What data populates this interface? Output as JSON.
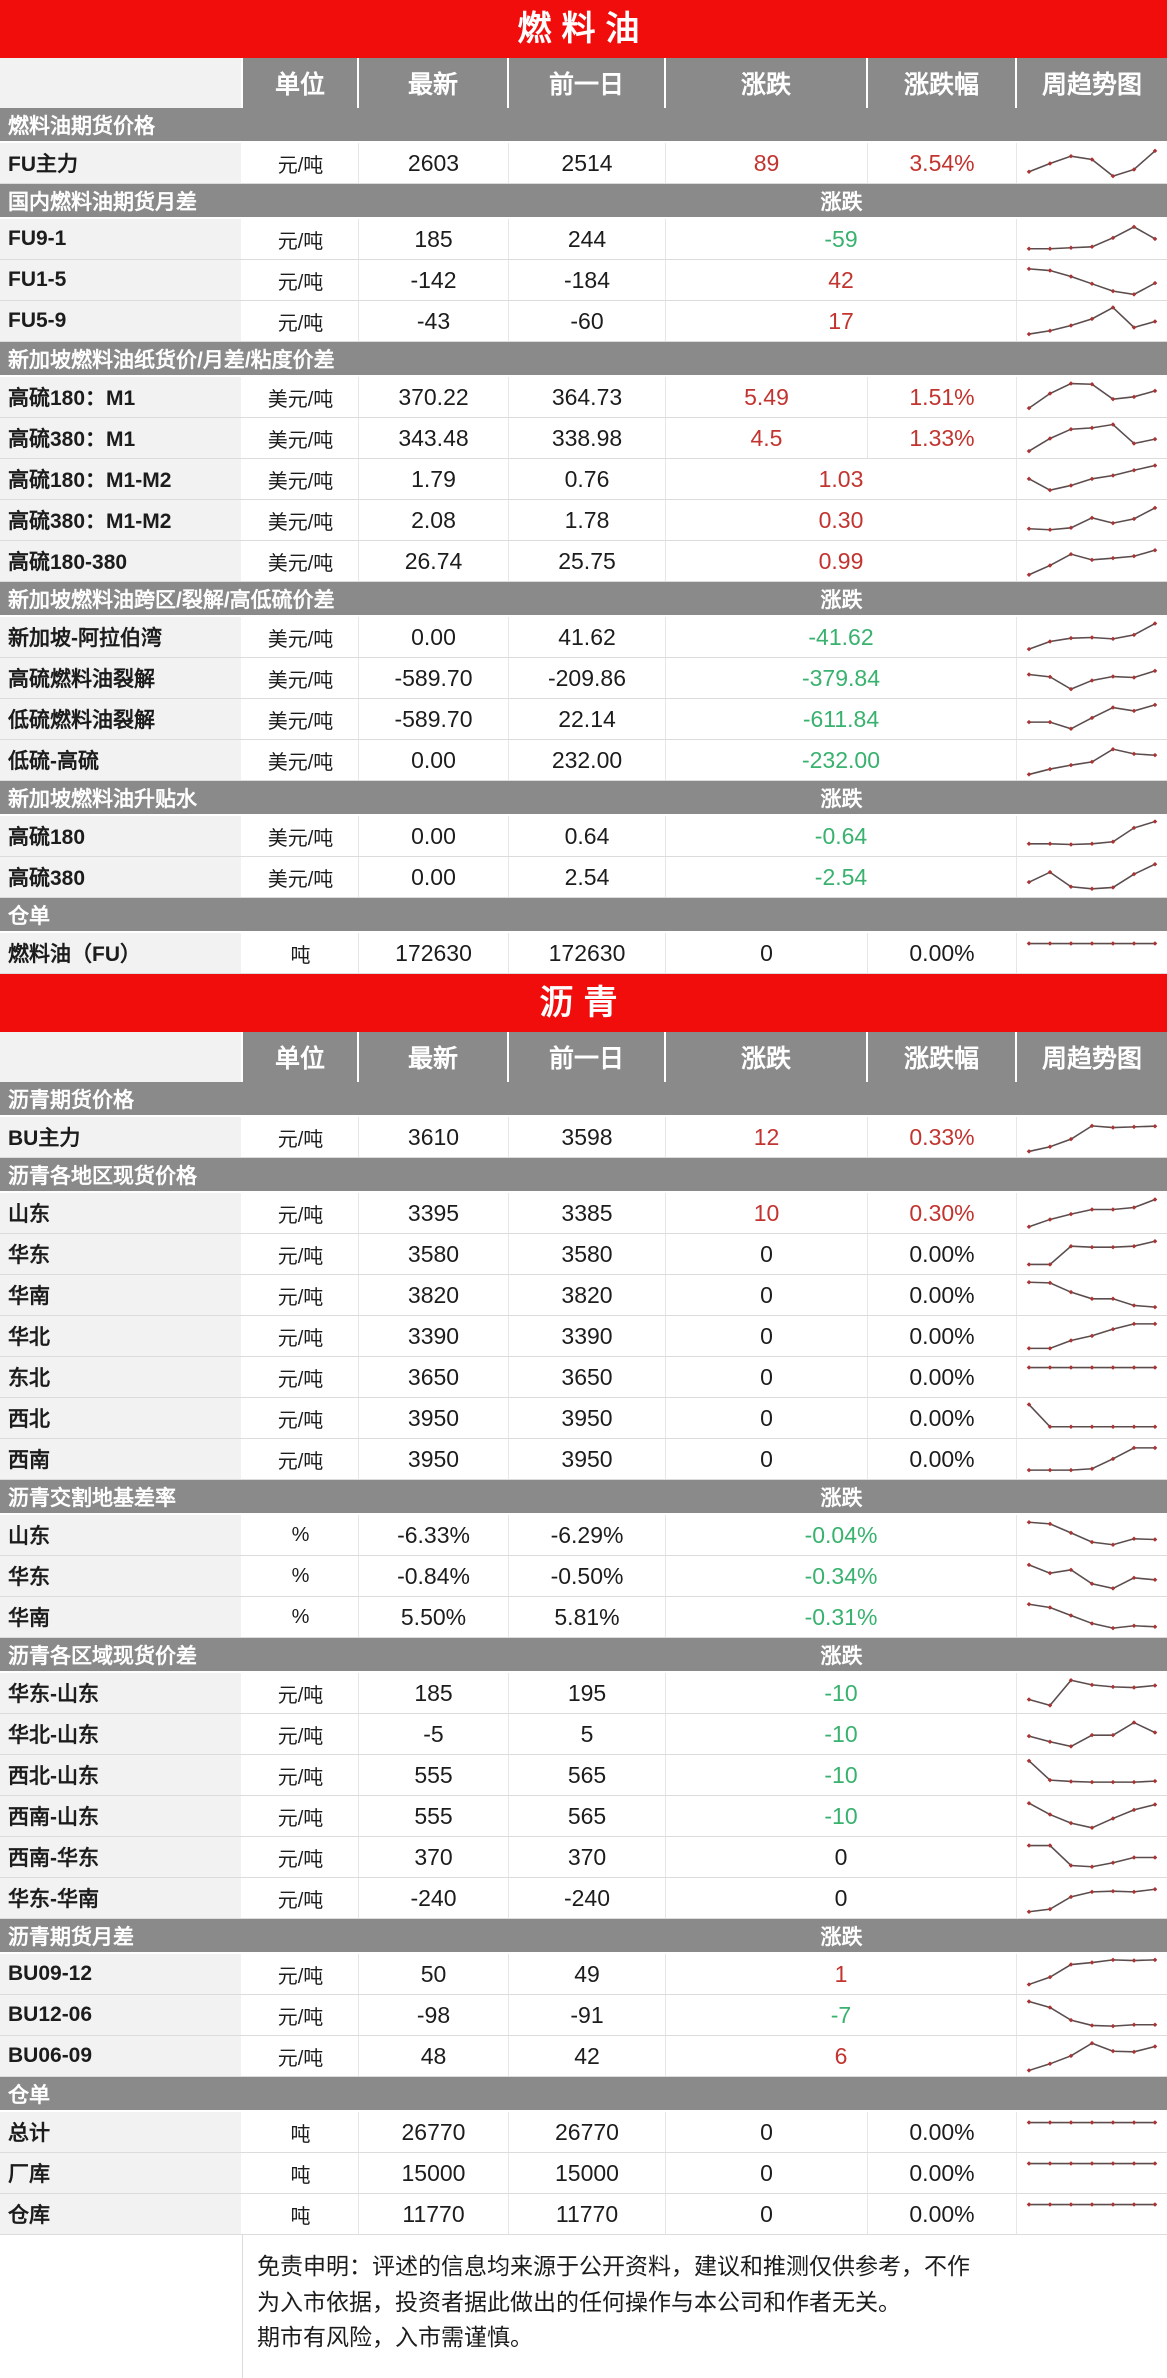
{
  "colors": {
    "banner_red": "#f20d0d",
    "header_gray": "#8a8a8a",
    "label_bg": "#f2f2f2",
    "up_red": "#c2342f",
    "down_green": "#38b26e",
    "grid": "#dcdcdc",
    "spark_line": "#5b4d4d",
    "spark_marker": "#a83434"
  },
  "columns": {
    "unit": "单位",
    "latest": "最新",
    "prev": "前一日",
    "change": "涨跌",
    "change_pct": "涨跌幅",
    "trend": "周趋势图"
  },
  "tables": [
    {
      "title": "燃料油",
      "sections": [
        {
          "title": "燃料油期货价格",
          "change_label": "",
          "rows": [
            {
              "label": "FU主力",
              "unit": "元/吨",
              "latest": "2603",
              "prev": "2514",
              "change": "89",
              "change_color": "up",
              "pct": "3.54%",
              "pct_color": "up",
              "merged": false,
              "spark": [
                25,
                50,
                72,
                62,
                12,
                32,
                88
              ]
            }
          ]
        },
        {
          "title": "国内燃料油期货月差",
          "change_label": "涨跌",
          "rows": [
            {
              "label": "FU9-1",
              "unit": "元/吨",
              "latest": "185",
              "prev": "244",
              "change": "-59",
              "change_color": "down",
              "merged": true,
              "spark": [
                22,
                22,
                25,
                28,
                55,
                88,
                52
              ]
            },
            {
              "label": "FU1-5",
              "unit": "元/吨",
              "latest": "-142",
              "prev": "-184",
              "change": "42",
              "change_color": "up",
              "merged": true,
              "spark": [
                85,
                80,
                62,
                40,
                18,
                8,
                42
              ]
            },
            {
              "label": "FU5-9",
              "unit": "元/吨",
              "latest": "-43",
              "prev": "-60",
              "change": "17",
              "change_color": "up",
              "merged": true,
              "spark": [
                12,
                22,
                38,
                58,
                92,
                32,
                50
              ]
            }
          ]
        },
        {
          "title": "新加坡燃料油纸货价/月差/粘度价差",
          "change_label": "",
          "rows": [
            {
              "label": "高硫180：M1",
              "unit": "美元/吨",
              "latest": "370.22",
              "prev": "364.73",
              "change": "5.49",
              "change_color": "up",
              "pct": "1.51%",
              "pct_color": "up",
              "merged": false,
              "spark": [
                18,
                62,
                92,
                90,
                45,
                52,
                70
              ]
            },
            {
              "label": "高硫380：M1",
              "unit": "美元/吨",
              "latest": "343.48",
              "prev": "338.98",
              "change": "4.5",
              "change_color": "up",
              "pct": "1.33%",
              "pct_color": "up",
              "merged": false,
              "spark": [
                12,
                50,
                78,
                82,
                92,
                35,
                48
              ]
            },
            {
              "label": "高硫180：M1-M2",
              "unit": "美元/吨",
              "latest": "1.79",
              "prev": "0.76",
              "change": "1.03",
              "change_color": "up",
              "merged": true,
              "spark": [
                52,
                18,
                32,
                52,
                62,
                78,
                92
              ]
            },
            {
              "label": "高硫380：M1-M2",
              "unit": "美元/吨",
              "latest": "2.08",
              "prev": "1.78",
              "change": "0.30",
              "change_color": "up",
              "merged": true,
              "spark": [
                25,
                22,
                28,
                58,
                42,
                55,
                88
              ]
            },
            {
              "label": "高硫180-380",
              "unit": "美元/吨",
              "latest": "26.74",
              "prev": "25.75",
              "change": "0.99",
              "change_color": "up",
              "merged": true,
              "spark": [
                10,
                38,
                72,
                55,
                60,
                66,
                84
              ]
            }
          ]
        },
        {
          "title": "新加坡燃料油跨区/裂解/高低硫价差",
          "change_label": "涨跌",
          "rows": [
            {
              "label": "新加坡-阿拉伯湾",
              "unit": "美元/吨",
              "latest": "0.00",
              "prev": "41.62",
              "change": "-41.62",
              "change_color": "down",
              "merged": true,
              "spark": [
                15,
                38,
                48,
                50,
                46,
                58,
                92
              ]
            },
            {
              "label": "高硫燃料油裂解",
              "unit": "美元/吨",
              "latest": "-589.70",
              "prev": "-209.86",
              "change": "-379.84",
              "change_color": "down",
              "merged": true,
              "spark": [
                62,
                55,
                18,
                44,
                56,
                53,
                73
              ]
            },
            {
              "label": "低硫燃料油裂解",
              "unit": "美元/吨",
              "latest": "-589.70",
              "prev": "22.14",
              "change": "-611.84",
              "change_color": "down",
              "merged": true,
              "spark": [
                42,
                42,
                22,
                55,
                86,
                76,
                94
              ]
            },
            {
              "label": "低硫-高硫",
              "unit": "美元/吨",
              "latest": "0.00",
              "prev": "232.00",
              "change": "-232.00",
              "change_color": "down",
              "merged": true,
              "spark": [
                8,
                24,
                36,
                46,
                84,
                70,
                66
              ]
            }
          ]
        },
        {
          "title": "新加坡燃料油升贴水",
          "change_label": "涨跌",
          "rows": [
            {
              "label": "高硫180",
              "unit": "美元/吨",
              "latest": "0.00",
              "prev": "0.64",
              "change": "-0.64",
              "change_color": "down",
              "merged": true,
              "spark": [
                28,
                28,
                26,
                28,
                34,
                76,
                95
              ]
            },
            {
              "label": "高硫380",
              "unit": "美元/吨",
              "latest": "0.00",
              "prev": "2.54",
              "change": "-2.54",
              "change_color": "down",
              "merged": true,
              "spark": [
                36,
                66,
                22,
                16,
                20,
                60,
                90
              ]
            }
          ]
        },
        {
          "title": "仓单",
          "change_label": "",
          "rows": [
            {
              "label": "燃料油（FU）",
              "unit": "吨",
              "latest": "172630",
              "prev": "172630",
              "change": "0",
              "change_color": "flat",
              "pct": "0.00%",
              "pct_color": "flat",
              "merged": false,
              "spark": [
                80,
                80,
                80,
                80,
                80,
                80,
                80
              ]
            }
          ]
        }
      ]
    },
    {
      "title": "沥青",
      "sections": [
        {
          "title": "沥青期货价格",
          "change_label": "",
          "rows": [
            {
              "label": "BU主力",
              "unit": "元/吨",
              "latest": "3610",
              "prev": "3598",
              "change": "12",
              "change_color": "up",
              "pct": "0.33%",
              "pct_color": "up",
              "merged": false,
              "spark": [
                8,
                22,
                45,
                85,
                80,
                82,
                84
              ]
            }
          ]
        },
        {
          "title": "沥青各地区现货价格",
          "change_label": "",
          "rows": [
            {
              "label": "山东",
              "unit": "元/吨",
              "latest": "3395",
              "prev": "3385",
              "change": "10",
              "change_color": "up",
              "pct": "0.30%",
              "pct_color": "up",
              "merged": false,
              "spark": [
                10,
                32,
                48,
                62,
                62,
                68,
                92
              ]
            },
            {
              "label": "华东",
              "unit": "元/吨",
              "latest": "3580",
              "prev": "3580",
              "change": "0",
              "change_color": "flat",
              "pct": "0.00%",
              "pct_color": "flat",
              "merged": false,
              "spark": [
                20,
                20,
                75,
                72,
                72,
                75,
                90
              ]
            },
            {
              "label": "华南",
              "unit": "元/吨",
              "latest": "3820",
              "prev": "3820",
              "change": "0",
              "change_color": "flat",
              "pct": "0.00%",
              "pct_color": "flat",
              "merged": false,
              "spark": [
                90,
                88,
                60,
                40,
                40,
                20,
                15
              ]
            },
            {
              "label": "华北",
              "unit": "元/吨",
              "latest": "3390",
              "prev": "3390",
              "change": "0",
              "change_color": "flat",
              "pct": "0.00%",
              "pct_color": "flat",
              "merged": false,
              "spark": [
                14,
                14,
                38,
                52,
                72,
                88,
                88
              ]
            },
            {
              "label": "东北",
              "unit": "元/吨",
              "latest": "3650",
              "prev": "3650",
              "change": "0",
              "change_color": "flat",
              "pct": "0.00%",
              "pct_color": "flat",
              "merged": false,
              "spark": [
                80,
                80,
                80,
                80,
                80,
                80,
                80
              ]
            },
            {
              "label": "西北",
              "unit": "元/吨",
              "latest": "3950",
              "prev": "3950",
              "change": "0",
              "change_color": "flat",
              "pct": "0.00%",
              "pct_color": "flat",
              "merged": false,
              "spark": [
                92,
                25,
                25,
                25,
                25,
                25,
                25
              ]
            },
            {
              "label": "西南",
              "unit": "元/吨",
              "latest": "3950",
              "prev": "3950",
              "change": "0",
              "change_color": "flat",
              "pct": "0.00%",
              "pct_color": "flat",
              "merged": false,
              "spark": [
                18,
                18,
                18,
                22,
                52,
                85,
                85
              ]
            }
          ]
        },
        {
          "title": "沥青交割地基差率",
          "change_label": "涨跌",
          "rows": [
            {
              "label": "山东",
              "unit": "%",
              "latest": "-6.33%",
              "prev": "-6.29%",
              "change": "-0.04%",
              "change_color": "down",
              "merged": true,
              "spark": [
                90,
                85,
                58,
                30,
                22,
                40,
                38
              ]
            },
            {
              "label": "华东",
              "unit": "%",
              "latest": "-0.84%",
              "prev": "-0.50%",
              "change": "-0.34%",
              "change_color": "down",
              "merged": true,
              "spark": [
                85,
                60,
                70,
                28,
                14,
                46,
                40
              ]
            },
            {
              "label": "华南",
              "unit": "%",
              "latest": "5.50%",
              "prev": "5.81%",
              "change": "-0.31%",
              "change_color": "down",
              "merged": true,
              "spark": [
                90,
                80,
                56,
                32,
                18,
                25,
                22
              ]
            }
          ]
        },
        {
          "title": "沥青各区域现货价差",
          "change_label": "涨跌",
          "rows": [
            {
              "label": "华东-山东",
              "unit": "元/吨",
              "latest": "185",
              "prev": "195",
              "change": "-10",
              "change_color": "down",
              "merged": true,
              "spark": [
                32,
                14,
                90,
                76,
                70,
                68,
                74
              ]
            },
            {
              "label": "华北-山东",
              "unit": "元/吨",
              "latest": "-5",
              "prev": "5",
              "change": "-10",
              "change_color": "down",
              "merged": true,
              "spark": [
                45,
                28,
                14,
                48,
                48,
                86,
                56
              ]
            },
            {
              "label": "西北-山东",
              "unit": "元/吨",
              "latest": "555",
              "prev": "565",
              "change": "-10",
              "change_color": "down",
              "merged": true,
              "spark": [
                94,
                36,
                32,
                30,
                30,
                30,
                33
              ]
            },
            {
              "label": "西南-山东",
              "unit": "元/吨",
              "latest": "555",
              "prev": "565",
              "change": "-10",
              "change_color": "down",
              "merged": true,
              "spark": [
                90,
                56,
                30,
                16,
                44,
                70,
                86
              ]
            },
            {
              "label": "西南-华东",
              "unit": "元/吨",
              "latest": "370",
              "prev": "370",
              "change": "0",
              "change_color": "flat",
              "merged": true,
              "spark": [
                86,
                86,
                26,
                22,
                34,
                50,
                50
              ]
            },
            {
              "label": "华东-华南",
              "unit": "元/吨",
              "latest": "-240",
              "prev": "-240",
              "change": "0",
              "change_color": "flat",
              "merged": true,
              "spark": [
                10,
                18,
                55,
                70,
                72,
                70,
                78
              ]
            }
          ]
        },
        {
          "title": "沥青期货月差",
          "change_label": "涨跌",
          "rows": [
            {
              "label": "BU09-12",
              "unit": "元/吨",
              "latest": "50",
              "prev": "49",
              "change": "1",
              "change_color": "up",
              "merged": true,
              "spark": [
                20,
                42,
                80,
                86,
                94,
                92,
                94
              ]
            },
            {
              "label": "BU12-06",
              "unit": "元/吨",
              "latest": "-98",
              "prev": "-91",
              "change": "-7",
              "change_color": "down",
              "merged": true,
              "spark": [
                92,
                74,
                36,
                20,
                18,
                22,
                22
              ]
            },
            {
              "label": "BU06-09",
              "unit": "元/吨",
              "latest": "48",
              "prev": "42",
              "change": "6",
              "change_color": "up",
              "merged": true,
              "spark": [
                8,
                28,
                52,
                90,
                66,
                64,
                80
              ]
            }
          ]
        },
        {
          "title": "仓单",
          "change_label": "",
          "rows": [
            {
              "label": "总计",
              "unit": "吨",
              "latest": "26770",
              "prev": "26770",
              "change": "0",
              "change_color": "flat",
              "pct": "0.00%",
              "pct_color": "flat",
              "merged": false,
              "spark": [
                80,
                80,
                80,
                80,
                80,
                80,
                80
              ]
            },
            {
              "label": "厂库",
              "unit": "吨",
              "latest": "15000",
              "prev": "15000",
              "change": "0",
              "change_color": "flat",
              "pct": "0.00%",
              "pct_color": "flat",
              "merged": false,
              "spark": [
                80,
                80,
                80,
                80,
                80,
                80,
                80
              ]
            },
            {
              "label": "仓库",
              "unit": "吨",
              "latest": "11770",
              "prev": "11770",
              "change": "0",
              "change_color": "flat",
              "pct": "0.00%",
              "pct_color": "flat",
              "merged": false,
              "spark": [
                80,
                80,
                80,
                80,
                80,
                80,
                80
              ]
            }
          ]
        }
      ]
    }
  ],
  "disclaimer": {
    "line1": "免责申明：评述的信息均来源于公开资料，建议和推测仅供参考，不作",
    "line2": "为入市依据，投资者据此做出的任何操作与本公司和作者无关。",
    "line3": "期市有风险，入市需谨慎。"
  }
}
